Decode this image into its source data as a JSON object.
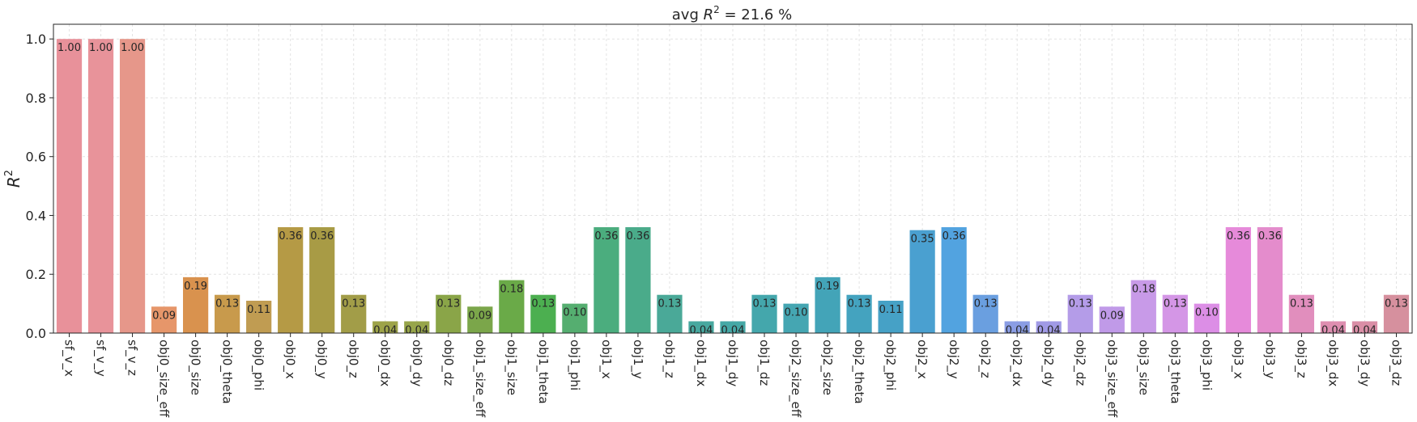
{
  "chart_data": {
    "type": "bar",
    "title": "avg R² = 21.6 %",
    "title_parts": {
      "prefix": "avg ",
      "symbol": "R",
      "sup": "2",
      "suffix": " = 21.6 %"
    },
    "xlabel": "",
    "ylabel": "R²",
    "ylabel_parts": {
      "symbol": "R",
      "sup": "2"
    },
    "ylim": [
      0,
      1.05
    ],
    "yticks": [
      0.0,
      0.2,
      0.4,
      0.6,
      0.8,
      1.0
    ],
    "ytick_labels": [
      "0.0",
      "0.2",
      "0.4",
      "0.6",
      "0.8",
      "1.0"
    ],
    "grid": true,
    "categories": [
      "sf_v_x",
      "sf_v_y",
      "sf_v_z",
      "obj0_size_eff",
      "obj0_size",
      "obj0_theta",
      "obj0_phi",
      "obj0_x",
      "obj0_y",
      "obj0_z",
      "obj0_dx",
      "obj0_dy",
      "obj0_dz",
      "obj1_size_eff",
      "obj1_size",
      "obj1_theta",
      "obj1_phi",
      "obj1_x",
      "obj1_y",
      "obj1_z",
      "obj1_dx",
      "obj1_dy",
      "obj1_dz",
      "obj2_size_eff",
      "obj2_size",
      "obj2_theta",
      "obj2_phi",
      "obj2_x",
      "obj2_y",
      "obj2_z",
      "obj2_dx",
      "obj2_dy",
      "obj2_dz",
      "obj3_size_eff",
      "obj3_size",
      "obj3_theta",
      "obj3_phi",
      "obj3_x",
      "obj3_y",
      "obj3_z",
      "obj3_dx",
      "obj3_dy",
      "obj3_dz"
    ],
    "values": [
      1.0,
      1.0,
      1.0,
      0.09,
      0.19,
      0.13,
      0.11,
      0.36,
      0.36,
      0.13,
      0.04,
      0.04,
      0.13,
      0.09,
      0.18,
      0.13,
      0.1,
      0.36,
      0.36,
      0.13,
      0.04,
      0.04,
      0.13,
      0.1,
      0.19,
      0.13,
      0.11,
      0.35,
      0.36,
      0.13,
      0.04,
      0.04,
      0.13,
      0.09,
      0.18,
      0.13,
      0.1,
      0.36,
      0.36,
      0.13,
      0.04,
      0.04,
      0.13
    ],
    "value_labels": [
      "1.00",
      "1.00",
      "1.00",
      "0.09",
      "0.19",
      "0.13",
      "0.11",
      "0.36",
      "0.36",
      "0.13",
      "0.04",
      "0.04",
      "0.13",
      "0.09",
      "0.18",
      "0.13",
      "0.10",
      "0.36",
      "0.36",
      "0.13",
      "0.04",
      "0.04",
      "0.13",
      "0.10",
      "0.19",
      "0.13",
      "0.11",
      "0.35",
      "0.36",
      "0.13",
      "0.04",
      "0.04",
      "0.13",
      "0.09",
      "0.18",
      "0.13",
      "0.10",
      "0.36",
      "0.36",
      "0.13",
      "0.04",
      "0.04",
      "0.13"
    ],
    "colors": [
      "#e8919a",
      "#e8939a",
      "#e6978a",
      "#e6966a",
      "#d9924e",
      "#c89a4c",
      "#c09c52",
      "#b59a45",
      "#a89b45",
      "#a29d48",
      "#9da348",
      "#97a54a",
      "#8aa548",
      "#7ba64a",
      "#6aaa48",
      "#4caf50",
      "#55ae70",
      "#4bad7e",
      "#4aab8a",
      "#4aa998",
      "#47a89f",
      "#45a8a6",
      "#44a7ac",
      "#45a6b2",
      "#43a4b8",
      "#44a3bf",
      "#46a1c6",
      "#4aa0d0",
      "#52a3e0",
      "#6a9fe0",
      "#8a9de4",
      "#a09ae6",
      "#b49ce8",
      "#c09ae8",
      "#c89ae8",
      "#d496e6",
      "#dc8ee6",
      "#e68ada",
      "#e48ccc",
      "#e18ebd",
      "#de8eb0",
      "#da8ea6",
      "#d6909e"
    ],
    "axis_color": "#262626",
    "grid_color": "#e3e3e3"
  }
}
